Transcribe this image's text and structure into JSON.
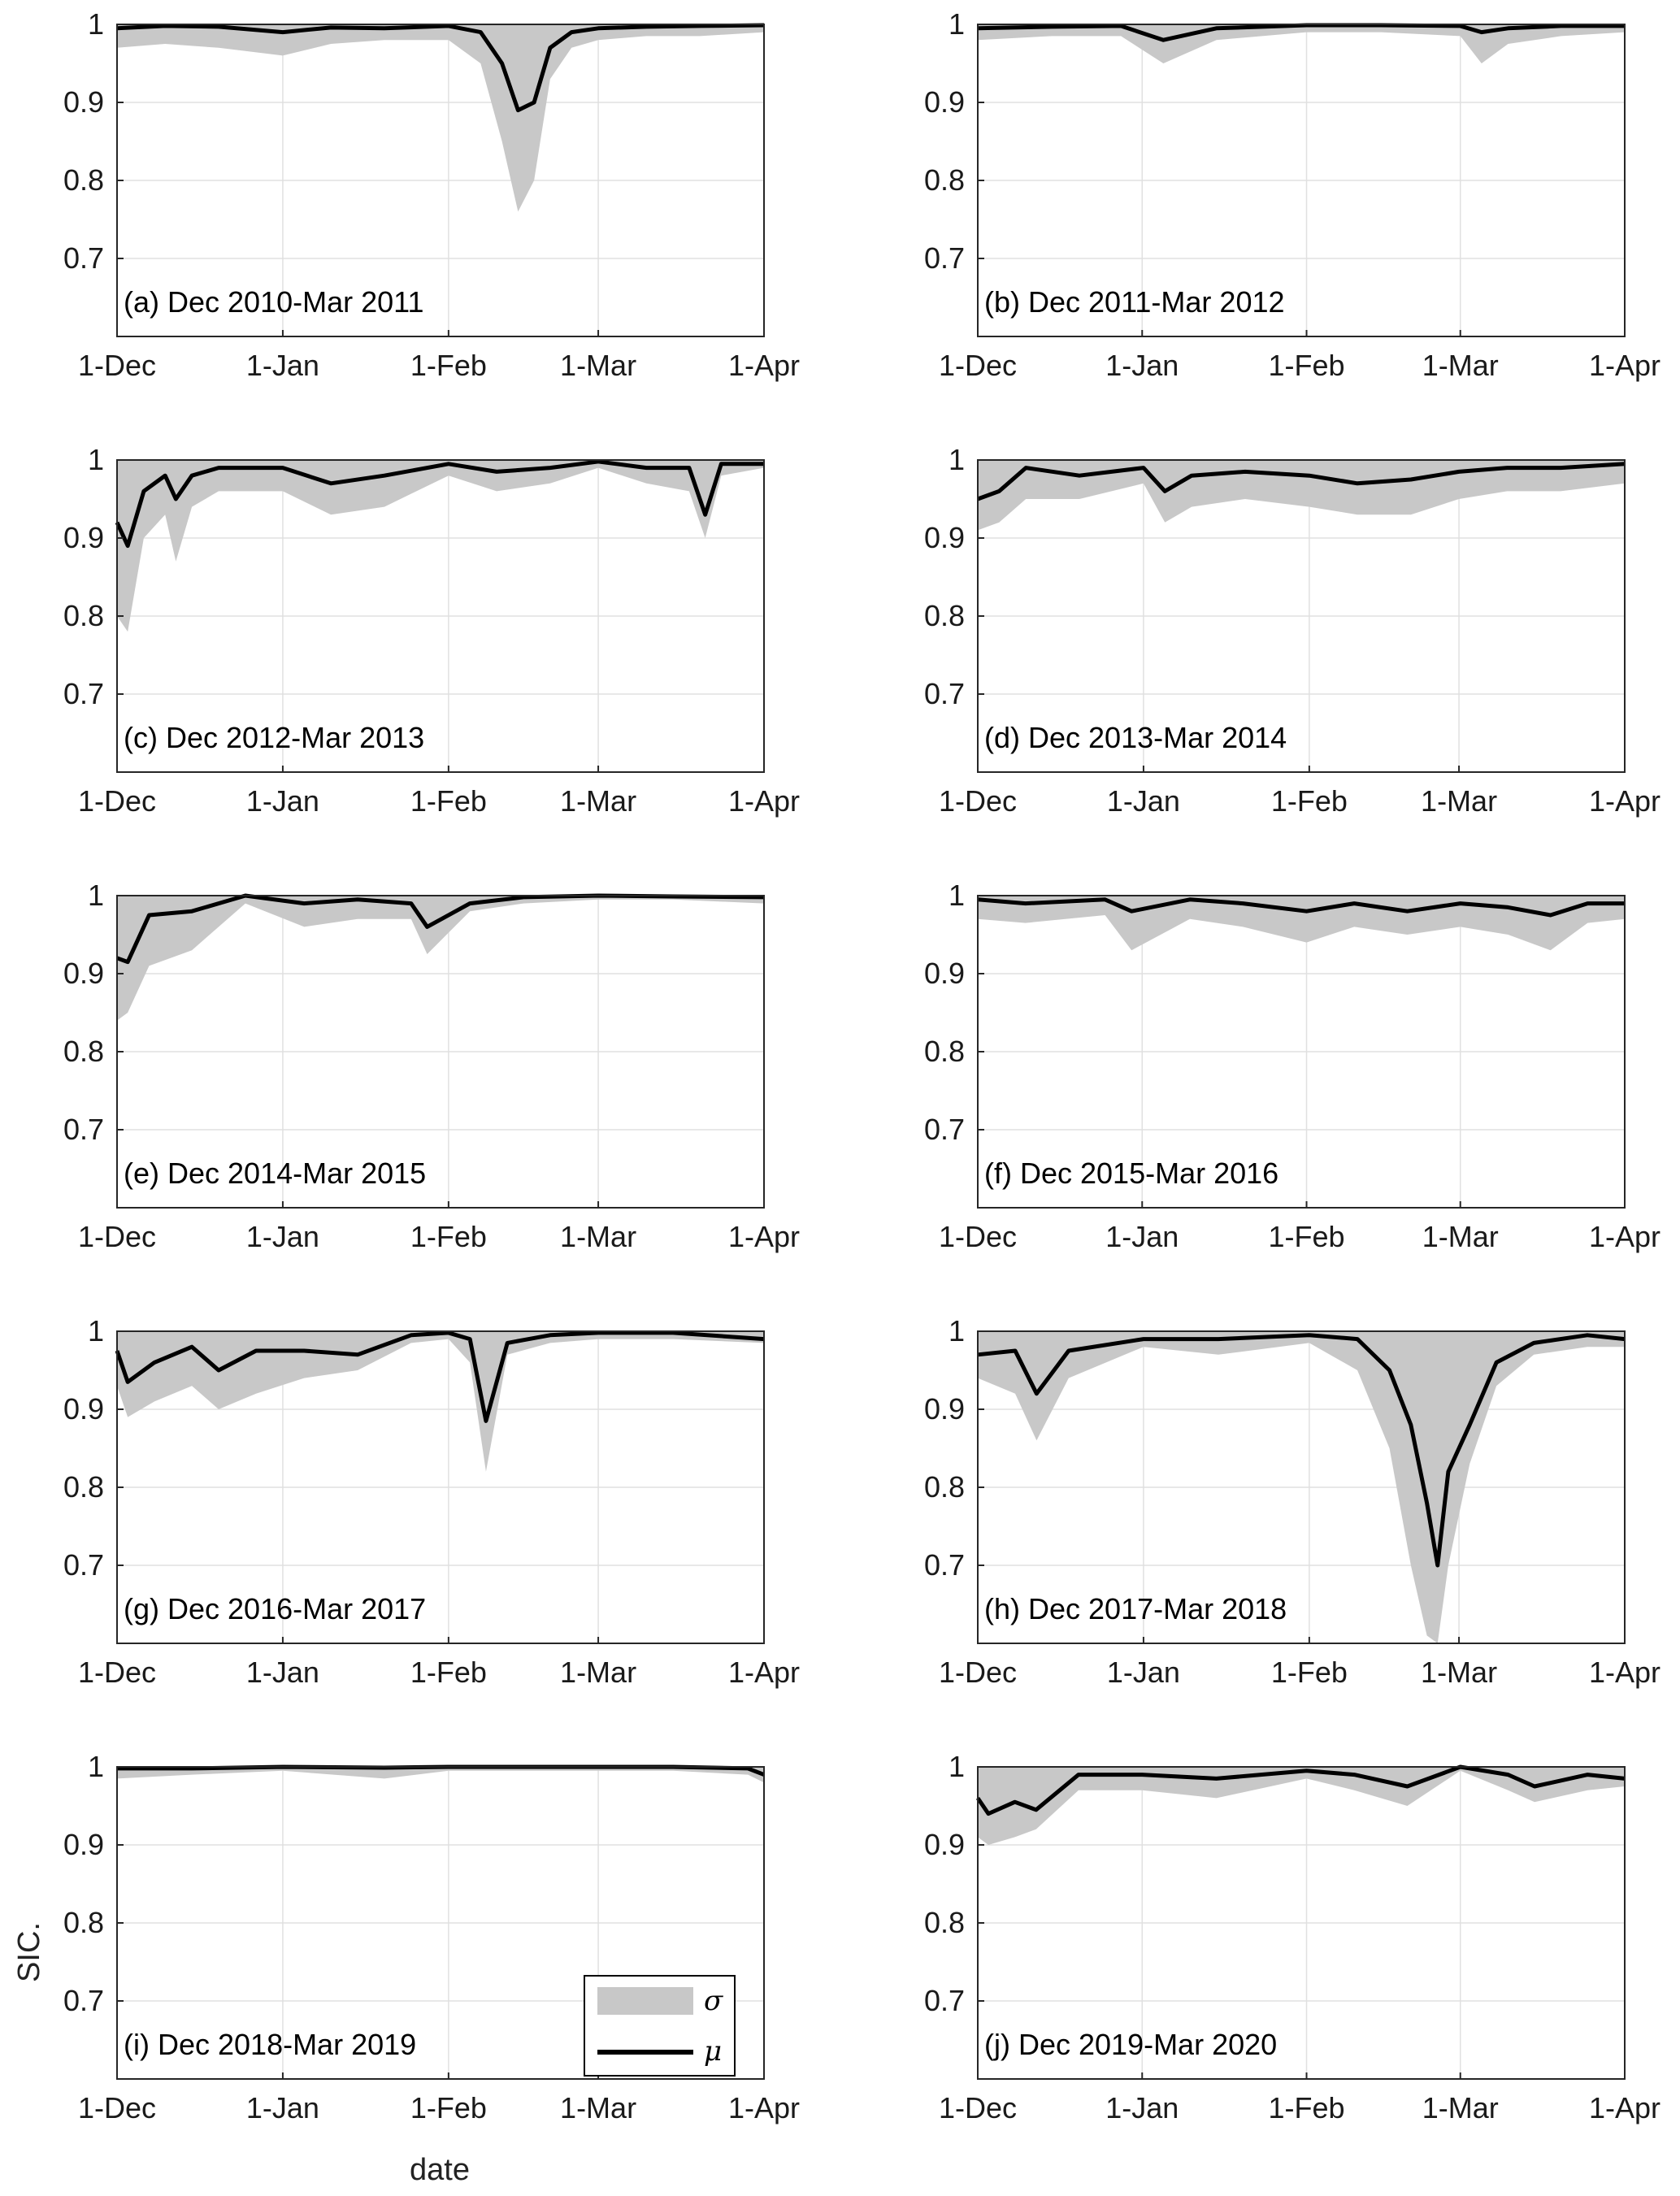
{
  "figure": {
    "ylabel": "SIC.",
    "xlabel": "date"
  },
  "legend": {
    "items": [
      {
        "symbol": "σ",
        "kind": "band",
        "color": "#c8c8c8"
      },
      {
        "symbol": "μ",
        "kind": "line",
        "color": "#000000"
      }
    ]
  },
  "colors": {
    "band": "#c8c8c8",
    "line": "#000000",
    "grid": "#e0e0e0",
    "axis": "#262626"
  },
  "chart_data": [
    {
      "type": "area",
      "label": "(a) Dec 2010-Mar 2011",
      "x_ticks": [
        "1-Dec",
        "1-Jan",
        "1-Feb",
        "1-Mar",
        "1-Apr"
      ],
      "y_ticks": [
        "0.7",
        "0.8",
        "0.9",
        "1"
      ],
      "ylim": [
        0.6,
        1.0
      ],
      "grid": true,
      "x": [
        "2010-12-01",
        "2010-12-10",
        "2010-12-20",
        "2011-01-01",
        "2011-01-10",
        "2011-01-20",
        "2011-02-01",
        "2011-02-07",
        "2011-02-11",
        "2011-02-14",
        "2011-02-17",
        "2011-02-20",
        "2011-02-24",
        "2011-03-01",
        "2011-03-10",
        "2011-03-20",
        "2011-04-01"
      ],
      "series": [
        {
          "name": "μ",
          "values": [
            0.995,
            0.998,
            0.997,
            0.99,
            0.996,
            0.995,
            0.998,
            0.99,
            0.95,
            0.89,
            0.9,
            0.97,
            0.99,
            0.995,
            0.997,
            0.998,
            0.999
          ]
        },
        {
          "name": "σ",
          "values": [
            0.97,
            0.975,
            0.97,
            0.96,
            0.975,
            0.98,
            0.98,
            0.95,
            0.85,
            0.76,
            0.8,
            0.93,
            0.97,
            0.98,
            0.985,
            0.985,
            0.99
          ]
        }
      ]
    },
    {
      "type": "area",
      "label": "(b) Dec 2011-Mar 2012",
      "x_ticks": [
        "1-Dec",
        "1-Jan",
        "1-Feb",
        "1-Mar",
        "1-Apr"
      ],
      "y_ticks": [
        "0.7",
        "0.8",
        "0.9",
        "1"
      ],
      "ylim": [
        0.6,
        1.0
      ],
      "grid": true,
      "x": [
        "2011-12-01",
        "2011-12-15",
        "2011-12-28",
        "2012-01-05",
        "2012-01-15",
        "2012-02-01",
        "2012-02-15",
        "2012-03-01",
        "2012-03-05",
        "2012-03-10",
        "2012-03-20",
        "2012-04-01"
      ],
      "series": [
        {
          "name": "μ",
          "values": [
            0.995,
            0.997,
            0.998,
            0.98,
            0.995,
            0.999,
            0.999,
            0.998,
            0.99,
            0.995,
            0.998,
            0.998
          ]
        },
        {
          "name": "σ",
          "values": [
            0.98,
            0.985,
            0.985,
            0.95,
            0.98,
            0.99,
            0.99,
            0.985,
            0.95,
            0.975,
            0.985,
            0.99
          ]
        }
      ]
    },
    {
      "type": "area",
      "label": "(c) Dec 2012-Mar 2013",
      "x_ticks": [
        "1-Dec",
        "1-Jan",
        "1-Feb",
        "1-Mar",
        "1-Apr"
      ],
      "y_ticks": [
        "0.7",
        "0.8",
        "0.9",
        "1"
      ],
      "ylim": [
        0.6,
        1.0
      ],
      "grid": true,
      "x": [
        "2012-12-01",
        "2012-12-03",
        "2012-12-06",
        "2012-12-10",
        "2012-12-12",
        "2012-12-15",
        "2012-12-20",
        "2013-01-01",
        "2013-01-10",
        "2013-01-20",
        "2013-02-01",
        "2013-02-10",
        "2013-02-20",
        "2013-03-01",
        "2013-03-10",
        "2013-03-18",
        "2013-03-21",
        "2013-03-24",
        "2013-04-01"
      ],
      "series": [
        {
          "name": "μ",
          "values": [
            0.92,
            0.89,
            0.96,
            0.98,
            0.95,
            0.98,
            0.99,
            0.99,
            0.97,
            0.98,
            0.995,
            0.985,
            0.99,
            0.998,
            0.99,
            0.99,
            0.93,
            0.995,
            0.995
          ]
        },
        {
          "name": "σ",
          "values": [
            0.8,
            0.78,
            0.9,
            0.93,
            0.87,
            0.94,
            0.96,
            0.96,
            0.93,
            0.94,
            0.98,
            0.96,
            0.97,
            0.99,
            0.97,
            0.96,
            0.9,
            0.98,
            0.99
          ]
        }
      ]
    },
    {
      "type": "area",
      "label": "(d) Dec 2013-Mar 2014",
      "x_ticks": [
        "1-Dec",
        "1-Jan",
        "1-Feb",
        "1-Mar",
        "1-Apr"
      ],
      "y_ticks": [
        "0.7",
        "0.8",
        "0.9",
        "1"
      ],
      "ylim": [
        0.6,
        1.0
      ],
      "grid": true,
      "x": [
        "2013-12-01",
        "2013-12-05",
        "2013-12-10",
        "2013-12-20",
        "2014-01-01",
        "2014-01-05",
        "2014-01-10",
        "2014-01-20",
        "2014-02-01",
        "2014-02-10",
        "2014-02-20",
        "2014-03-01",
        "2014-03-10",
        "2014-03-20",
        "2014-04-01"
      ],
      "series": [
        {
          "name": "μ",
          "values": [
            0.95,
            0.96,
            0.99,
            0.98,
            0.99,
            0.96,
            0.98,
            0.985,
            0.98,
            0.97,
            0.975,
            0.985,
            0.99,
            0.99,
            0.995
          ]
        },
        {
          "name": "σ",
          "values": [
            0.91,
            0.92,
            0.95,
            0.95,
            0.97,
            0.92,
            0.94,
            0.95,
            0.94,
            0.93,
            0.93,
            0.95,
            0.96,
            0.96,
            0.97
          ]
        }
      ]
    },
    {
      "type": "area",
      "label": "(e) Dec 2014-Mar 2015",
      "x_ticks": [
        "1-Dec",
        "1-Jan",
        "1-Feb",
        "1-Mar",
        "1-Apr"
      ],
      "y_ticks": [
        "0.7",
        "0.8",
        "0.9",
        "1"
      ],
      "ylim": [
        0.6,
        1.0
      ],
      "grid": true,
      "x": [
        "2014-12-01",
        "2014-12-03",
        "2014-12-07",
        "2014-12-15",
        "2014-12-25",
        "2015-01-05",
        "2015-01-15",
        "2015-01-25",
        "2015-01-28",
        "2015-02-05",
        "2015-02-15",
        "2015-03-01",
        "2015-03-15",
        "2015-04-01"
      ],
      "series": [
        {
          "name": "μ",
          "values": [
            0.92,
            0.915,
            0.975,
            0.98,
            1.0,
            0.99,
            0.995,
            0.99,
            0.96,
            0.99,
            0.998,
            1.0,
            0.999,
            0.998
          ]
        },
        {
          "name": "σ",
          "values": [
            0.84,
            0.85,
            0.91,
            0.93,
            0.99,
            0.96,
            0.97,
            0.97,
            0.925,
            0.98,
            0.99,
            0.995,
            0.995,
            0.99
          ]
        }
      ]
    },
    {
      "type": "area",
      "label": "(f) Dec 2015-Mar 2016",
      "x_ticks": [
        "1-Dec",
        "1-Jan",
        "1-Feb",
        "1-Mar",
        "1-Apr"
      ],
      "y_ticks": [
        "0.7",
        "0.8",
        "0.9",
        "1"
      ],
      "ylim": [
        0.6,
        1.0
      ],
      "grid": true,
      "x": [
        "2015-12-01",
        "2015-12-10",
        "2015-12-25",
        "2015-12-30",
        "2016-01-10",
        "2016-01-20",
        "2016-02-01",
        "2016-02-10",
        "2016-02-20",
        "2016-03-01",
        "2016-03-10",
        "2016-03-18",
        "2016-03-25",
        "2016-04-01"
      ],
      "series": [
        {
          "name": "μ",
          "values": [
            0.995,
            0.99,
            0.995,
            0.98,
            0.995,
            0.99,
            0.98,
            0.99,
            0.98,
            0.99,
            0.985,
            0.975,
            0.99,
            0.99
          ]
        },
        {
          "name": "σ",
          "values": [
            0.97,
            0.965,
            0.975,
            0.93,
            0.97,
            0.96,
            0.94,
            0.96,
            0.95,
            0.96,
            0.95,
            0.93,
            0.965,
            0.97
          ]
        }
      ]
    },
    {
      "type": "area",
      "label": "(g) Dec 2016-Mar 2017",
      "x_ticks": [
        "1-Dec",
        "1-Jan",
        "1-Feb",
        "1-Mar",
        "1-Apr"
      ],
      "y_ticks": [
        "0.7",
        "0.8",
        "0.9",
        "1"
      ],
      "ylim": [
        0.6,
        1.0
      ],
      "grid": true,
      "x": [
        "2016-12-01",
        "2016-12-03",
        "2016-12-08",
        "2016-12-15",
        "2016-12-20",
        "2016-12-27",
        "2017-01-05",
        "2017-01-15",
        "2017-01-25",
        "2017-02-01",
        "2017-02-05",
        "2017-02-08",
        "2017-02-12",
        "2017-02-20",
        "2017-03-01",
        "2017-03-15",
        "2017-04-01"
      ],
      "series": [
        {
          "name": "μ",
          "values": [
            0.975,
            0.935,
            0.96,
            0.98,
            0.95,
            0.975,
            0.975,
            0.97,
            0.995,
            0.998,
            0.99,
            0.885,
            0.985,
            0.995,
            0.998,
            0.998,
            0.99
          ]
        },
        {
          "name": "σ",
          "values": [
            0.93,
            0.89,
            0.91,
            0.93,
            0.9,
            0.92,
            0.94,
            0.95,
            0.985,
            0.99,
            0.96,
            0.82,
            0.97,
            0.985,
            0.99,
            0.99,
            0.985
          ]
        }
      ]
    },
    {
      "type": "area",
      "label": "(h) Dec 2017-Mar 2018",
      "x_ticks": [
        "1-Dec",
        "1-Jan",
        "1-Feb",
        "1-Mar",
        "1-Apr"
      ],
      "y_ticks": [
        "0.7",
        "0.8",
        "0.9",
        "1"
      ],
      "ylim": [
        0.6,
        1.0
      ],
      "grid": true,
      "x": [
        "2017-12-01",
        "2017-12-08",
        "2017-12-12",
        "2017-12-18",
        "2018-01-01",
        "2018-01-15",
        "2018-02-01",
        "2018-02-10",
        "2018-02-16",
        "2018-02-20",
        "2018-02-23",
        "2018-02-25",
        "2018-02-27",
        "2018-03-03",
        "2018-03-08",
        "2018-03-15",
        "2018-03-25",
        "2018-04-01"
      ],
      "series": [
        {
          "name": "μ",
          "values": [
            0.97,
            0.975,
            0.92,
            0.975,
            0.99,
            0.99,
            0.995,
            0.99,
            0.95,
            0.88,
            0.78,
            0.7,
            0.82,
            0.88,
            0.96,
            0.985,
            0.995,
            0.99
          ]
        },
        {
          "name": "σ",
          "values": [
            0.94,
            0.92,
            0.86,
            0.94,
            0.98,
            0.97,
            0.985,
            0.95,
            0.85,
            0.7,
            0.61,
            0.6,
            0.7,
            0.83,
            0.93,
            0.97,
            0.98,
            0.98
          ]
        }
      ]
    },
    {
      "type": "area",
      "label": "(i) Dec 2018-Mar 2019",
      "x_ticks": [
        "1-Dec",
        "1-Jan",
        "1-Feb",
        "1-Mar",
        "1-Apr"
      ],
      "y_ticks": [
        "0.7",
        "0.8",
        "0.9",
        "1"
      ],
      "ylim": [
        0.6,
        1.0
      ],
      "grid": true,
      "x": [
        "2018-12-01",
        "2018-12-15",
        "2019-01-01",
        "2019-01-20",
        "2019-02-01",
        "2019-02-15",
        "2019-03-01",
        "2019-03-15",
        "2019-03-29",
        "2019-04-01"
      ],
      "series": [
        {
          "name": "μ",
          "values": [
            0.998,
            0.998,
            1.0,
            0.999,
            1.0,
            1.0,
            1.0,
            1.0,
            0.998,
            0.99
          ]
        },
        {
          "name": "σ",
          "values": [
            0.985,
            0.99,
            0.995,
            0.985,
            0.995,
            0.995,
            0.995,
            0.995,
            0.99,
            0.98
          ]
        }
      ]
    },
    {
      "type": "area",
      "label": "(j) Dec 2019-Mar 2020",
      "x_ticks": [
        "1-Dec",
        "1-Jan",
        "1-Feb",
        "1-Mar",
        "1-Apr"
      ],
      "y_ticks": [
        "0.7",
        "0.8",
        "0.9",
        "1"
      ],
      "ylim": [
        0.6,
        1.0
      ],
      "grid": true,
      "x": [
        "2019-12-01",
        "2019-12-03",
        "2019-12-08",
        "2019-12-12",
        "2019-12-20",
        "2020-01-01",
        "2020-01-15",
        "2020-02-01",
        "2020-02-10",
        "2020-02-20",
        "2020-03-01",
        "2020-03-10",
        "2020-03-15",
        "2020-03-25",
        "2020-04-01"
      ],
      "series": [
        {
          "name": "μ",
          "values": [
            0.96,
            0.94,
            0.955,
            0.945,
            0.99,
            0.99,
            0.985,
            0.995,
            0.99,
            0.975,
            1.0,
            0.99,
            0.975,
            0.99,
            0.985
          ]
        },
        {
          "name": "σ",
          "values": [
            0.91,
            0.9,
            0.91,
            0.92,
            0.97,
            0.97,
            0.96,
            0.985,
            0.97,
            0.95,
            0.995,
            0.97,
            0.955,
            0.97,
            0.975
          ]
        }
      ]
    }
  ]
}
